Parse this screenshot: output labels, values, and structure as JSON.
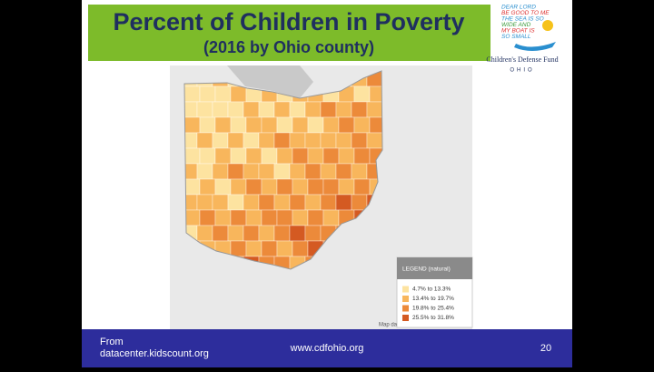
{
  "header": {
    "title": "Percent of Children in Poverty",
    "subtitle": "(2016 by Ohio county)"
  },
  "logo": {
    "prayer": [
      "DEAR LORD",
      "BE GOOD TO ME",
      "THE SEA IS SO",
      "WIDE AND",
      "MY BOAT IS",
      "SO SMALL"
    ],
    "name": "Children's Defense Fund",
    "state": "OHIO"
  },
  "map": {
    "attribution": "Map dat",
    "legend": {
      "title": "LEGEND (natural)",
      "items": [
        {
          "label": "4.7% to 13.3%",
          "color": "#fde3a0"
        },
        {
          "label": "13.4% to 19.7%",
          "color": "#f8b65c"
        },
        {
          "label": "19.8% to 25.4%",
          "color": "#ec8a3a"
        },
        {
          "label": "25.5% to 31.8%",
          "color": "#d45a22"
        }
      ]
    }
  },
  "footer": {
    "source_prefix": "From",
    "source": "datacenter.kidscount.org",
    "website": "www.cdfohio.org",
    "page": "20"
  }
}
